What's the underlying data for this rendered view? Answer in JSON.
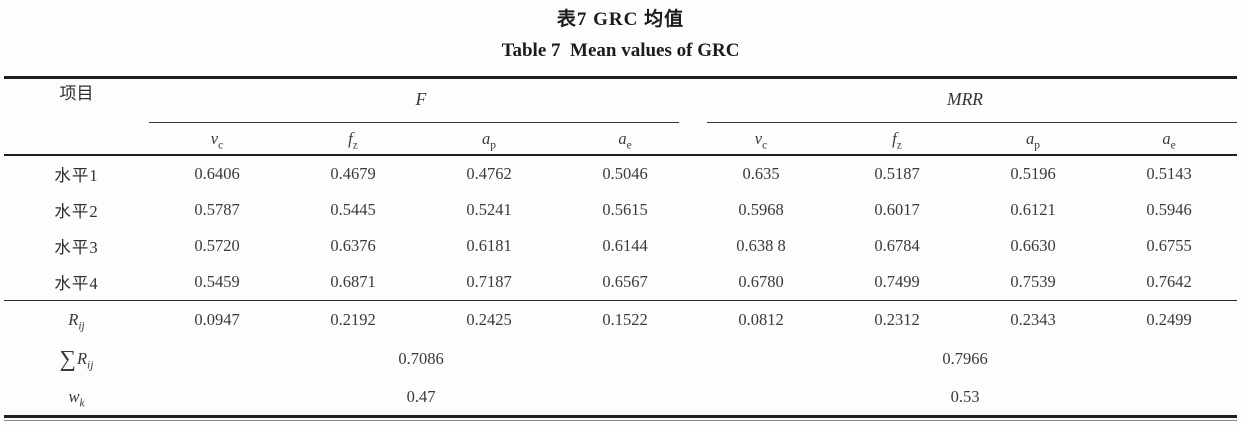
{
  "title": {
    "zh": "表7 GRC 均值",
    "en": "Table 7  Mean values of GRC"
  },
  "table": {
    "item_header": "项目",
    "groups": [
      {
        "label": "F"
      },
      {
        "label": "MRR"
      }
    ],
    "subcols": [
      {
        "base": "v",
        "sub": "c"
      },
      {
        "base": "f",
        "sub": "z"
      },
      {
        "base": "a",
        "sub": "p"
      },
      {
        "base": "a",
        "sub": "e"
      }
    ],
    "level_rows": [
      {
        "label": "水平1",
        "values": [
          "0.6406",
          "0.4679",
          "0.4762",
          "0.5046",
          "0.635",
          "0.5187",
          "0.5196",
          "0.5143"
        ]
      },
      {
        "label": "水平2",
        "values": [
          "0.5787",
          "0.5445",
          "0.5241",
          "0.5615",
          "0.5968",
          "0.6017",
          "0.6121",
          "0.5946"
        ]
      },
      {
        "label": "水平3",
        "values": [
          "0.5720",
          "0.6376",
          "0.6181",
          "0.6144",
          "0.638 8",
          "0.6784",
          "0.6630",
          "0.6755"
        ]
      },
      {
        "label": "水平4",
        "values": [
          "0.5459",
          "0.6871",
          "0.7187",
          "0.6567",
          "0.6780",
          "0.7499",
          "0.7539",
          "0.7642"
        ]
      }
    ],
    "r_row": {
      "base": "R",
      "sub": "ij",
      "values": [
        "0.0947",
        "0.2192",
        "0.2425",
        "0.1522",
        "0.0812",
        "0.2312",
        "0.2343",
        "0.2499"
      ]
    },
    "sum_row": {
      "sigma": "∑",
      "base": "R",
      "sub": "ij",
      "f_value": "0.7086",
      "mrr_value": "0.7966"
    },
    "w_row": {
      "base": "w",
      "sub": "k",
      "f_value": "0.47",
      "mrr_value": "0.53"
    }
  }
}
